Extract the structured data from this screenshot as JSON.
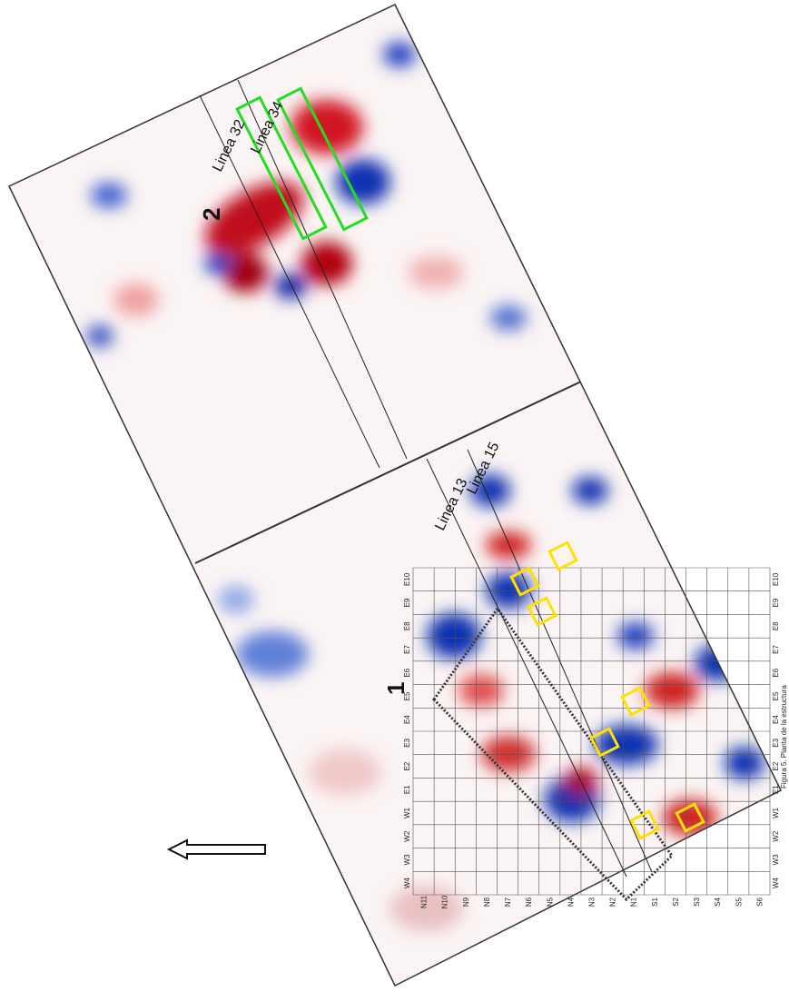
{
  "panel_labels": [
    "1",
    "2"
  ],
  "lines": [
    "Linea 32",
    "Linea 34",
    "Linea 13",
    "Linea 15"
  ],
  "grid": {
    "columns": [
      "N11",
      "N10",
      "N9",
      "N8",
      "N7",
      "N6",
      "N5",
      "N4",
      "N3",
      "N2",
      "N1",
      "S1",
      "S2",
      "S3",
      "S4",
      "S5",
      "S6"
    ],
    "rows": [
      "E10",
      "E9",
      "E8",
      "E7",
      "E6",
      "E5",
      "E4",
      "E3",
      "E2",
      "E1",
      "W1",
      "W2",
      "W3",
      "W4"
    ]
  },
  "caption": "Figura 5. Planta de la estructura"
}
